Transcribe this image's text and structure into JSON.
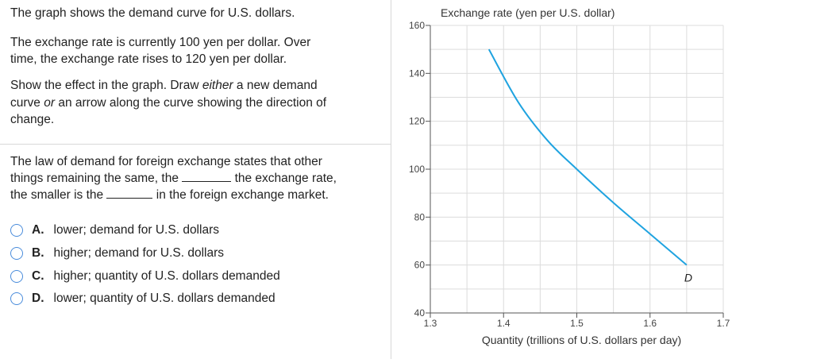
{
  "question": {
    "intro": "The graph shows the demand curve for U.S. dollars.",
    "scenario_line1": "The exchange rate is currently 100 yen per dollar. Over",
    "scenario_line2": "time, the exchange rate rises to 120 yen per dollar.",
    "instruction_line1_a": "Show the effect in the graph. Draw ",
    "instruction_line1_em": "either",
    "instruction_line1_b": " a new demand",
    "instruction_line2_a": "curve ",
    "instruction_line2_em": "or",
    "instruction_line2_b": " an arrow along the curve showing the direction of",
    "instruction_line3": "change.",
    "law_line1": "The law of demand for foreign exchange states that other",
    "law_line2_a": "things remaining the same, the",
    "law_line2_b": "the exchange rate,",
    "law_line3_a": "the smaller is the",
    "law_line3_b": "in the foreign exchange market."
  },
  "choices": [
    {
      "letter": "A.",
      "text": "lower; demand for U.S. dollars"
    },
    {
      "letter": "B.",
      "text": "higher; demand for U.S. dollars"
    },
    {
      "letter": "C.",
      "text": "higher; quantity of U.S. dollars demanded"
    },
    {
      "letter": "D.",
      "text": "lower; quantity of U.S. dollars demanded"
    }
  ],
  "chart_data": {
    "type": "line",
    "ylabel": "Exchange rate (yen per U.S. dollar)",
    "xlabel": "Quantity (trillions of U.S. dollars per day)",
    "xlim": [
      1.3,
      1.7
    ],
    "ylim": [
      40,
      160
    ],
    "xticks": [
      "1.3",
      "1.4",
      "1.5",
      "1.6",
      "1.7"
    ],
    "yticks": [
      "40",
      "60",
      "80",
      "100",
      "120",
      "140",
      "160"
    ],
    "grid": true,
    "series": [
      {
        "name": "D",
        "color": "#1fa3e0",
        "points": [
          [
            1.38,
            150
          ],
          [
            1.42,
            128
          ],
          [
            1.46,
            112
          ],
          [
            1.5,
            100
          ],
          [
            1.55,
            86
          ],
          [
            1.6,
            73
          ],
          [
            1.65,
            60
          ]
        ]
      }
    ]
  }
}
